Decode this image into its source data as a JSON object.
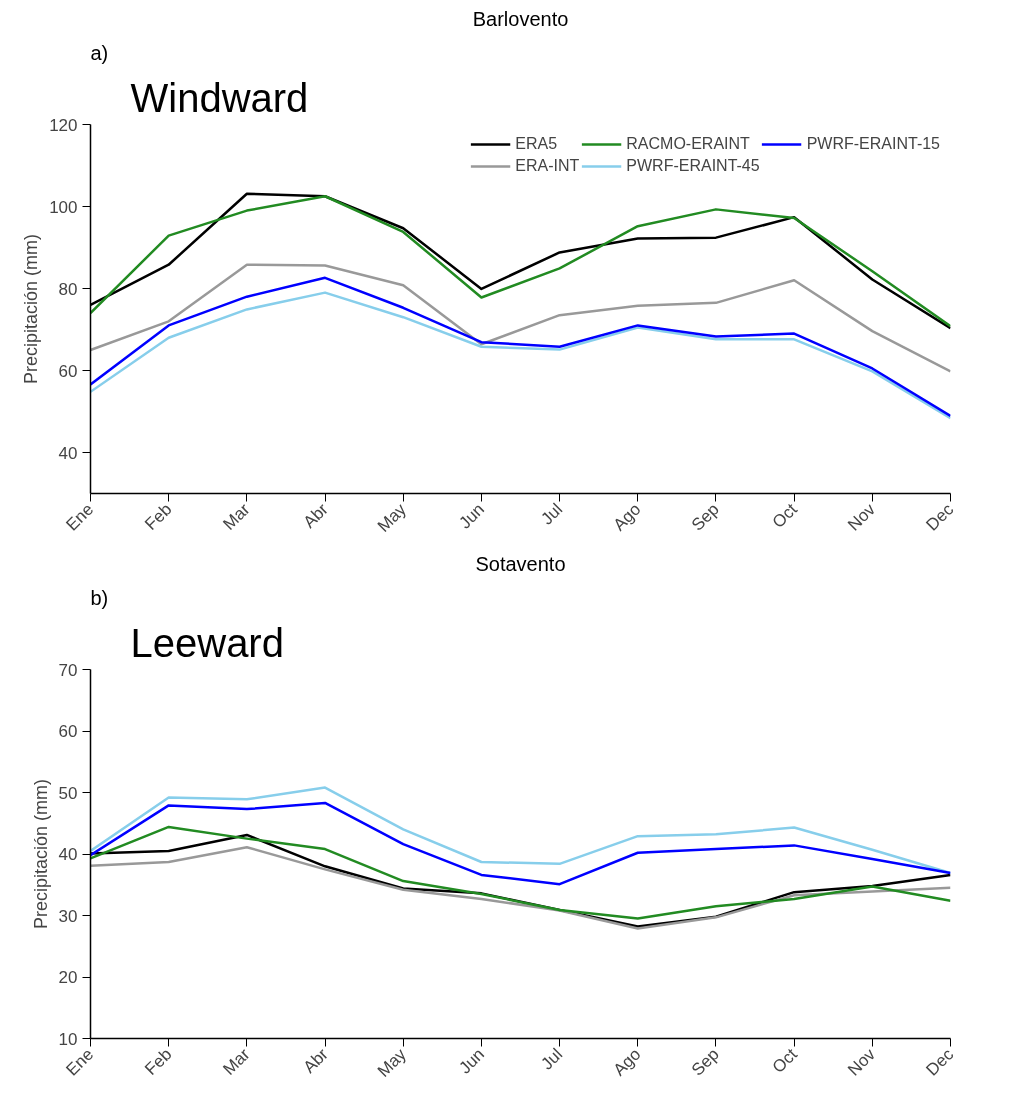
{
  "chart_data": [
    {
      "type": "line",
      "title": "Windward",
      "annotations": [
        "a)",
        "Barlovento"
      ],
      "ylabel": "Precipitación (mm)",
      "categories": [
        "Ene",
        "Feb",
        "Mar",
        "Abr",
        "May",
        "Jun",
        "Jul",
        "Ago",
        "Sep",
        "Oct",
        "Nov",
        "Dec"
      ],
      "ylim": [
        30,
        120
      ],
      "yticks": [
        40,
        60,
        80,
        100,
        120
      ],
      "grid": false,
      "legend": "top right",
      "line_style": "solid",
      "series": [
        {
          "name": "ERA5",
          "color": "#000000",
          "values": [
            76,
            85.8,
            103.1,
            102.5,
            94.7,
            79.9,
            88.8,
            92.2,
            92.4,
            97.4,
            82.2,
            70.3
          ]
        },
        {
          "name": "ERA-INT",
          "color": "#999999",
          "values": [
            65,
            72,
            85.8,
            85.6,
            80.8,
            66.4,
            73.5,
            75.8,
            76.5,
            82,
            69.6,
            59.8
          ]
        },
        {
          "name": "RACMO-ERAINT",
          "color": "#228b22",
          "values": [
            74,
            92.9,
            99,
            102.5,
            93.8,
            77.8,
            84.9,
            95.2,
            99.3,
            97.2,
            84.2,
            70.8
          ]
        },
        {
          "name": "PWRF-ERAINT-45",
          "color": "#87ceeb",
          "values": [
            54.8,
            68,
            74.9,
            79,
            73,
            65.8,
            65.1,
            70.5,
            67.6,
            67.6,
            59.8,
            48.4
          ]
        },
        {
          "name": "PWRF-ERAINT-15",
          "color": "#0000ff",
          "values": [
            56.6,
            71,
            78,
            82.6,
            75.3,
            66.9,
            65.8,
            71,
            68.3,
            69,
            60.5,
            48.9
          ]
        }
      ]
    },
    {
      "type": "line",
      "title": "Leeward",
      "annotations": [
        "b)",
        "Sotavento"
      ],
      "ylabel": "Precipitación (mm)",
      "categories": [
        "Ene",
        "Feb",
        "Mar",
        "Abr",
        "May",
        "Jun",
        "Jul",
        "Ago",
        "Sep",
        "Oct",
        "Nov",
        "Dec"
      ],
      "ylim": [
        10,
        70
      ],
      "yticks": [
        10,
        20,
        30,
        40,
        50,
        60,
        70
      ],
      "grid": false,
      "line_style": "solid",
      "series": [
        {
          "color": "#000000",
          "values": [
            40.1,
            40.5,
            43.1,
            38,
            34.4,
            33.6,
            30.9,
            28.2,
            29.8,
            33.8,
            34.8,
            36.6
          ]
        },
        {
          "color": "#999999",
          "values": [
            38.1,
            38.7,
            41.1,
            37.5,
            34.2,
            32.7,
            30.8,
            27.9,
            29.7,
            33.3,
            33.9,
            34.5
          ]
        },
        {
          "color": "#228b22",
          "values": [
            39.3,
            44.4,
            42.5,
            40.8,
            35.6,
            33.5,
            30.9,
            29.5,
            31.5,
            32.7,
            34.7,
            32.4
          ]
        },
        {
          "color": "#87ceeb",
          "values": [
            40.5,
            49.2,
            48.9,
            50.8,
            44,
            38.7,
            38.4,
            42.9,
            43.2,
            44.3,
            40.7,
            36.9
          ]
        },
        {
          "color": "#0000ff",
          "values": [
            39.8,
            47.9,
            47.3,
            48.3,
            41.6,
            36.6,
            35.1,
            40.2,
            40.8,
            41.4,
            39.2,
            36.9
          ]
        }
      ]
    }
  ]
}
